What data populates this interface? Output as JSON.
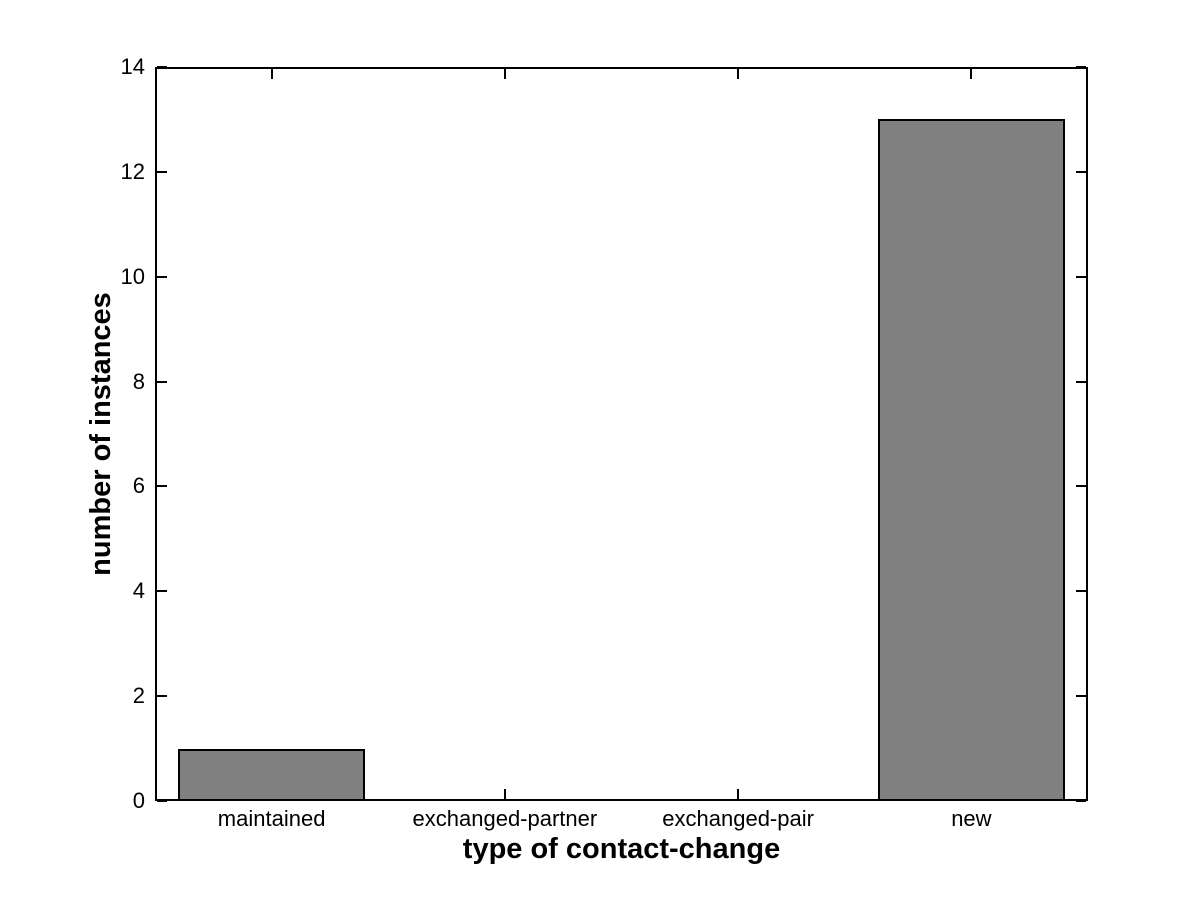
{
  "chart_data": {
    "type": "bar",
    "categories": [
      "maintained",
      "exchanged-partner",
      "exchanged-pair",
      "new"
    ],
    "values": [
      1,
      0,
      0,
      13
    ],
    "title": "",
    "xlabel": "type of contact-change",
    "ylabel": "number of instances",
    "ylim": [
      0,
      14
    ],
    "yticks": [
      0,
      2,
      4,
      6,
      8,
      10,
      12,
      14
    ],
    "bar_width_fraction": 0.8,
    "grid": false,
    "legend": "none",
    "tick_direction": "in",
    "colors": {
      "bar_fill": "#808080",
      "bar_edge": "#000000",
      "axis": "#000000",
      "text": "#000000",
      "background": "#ffffff"
    }
  }
}
